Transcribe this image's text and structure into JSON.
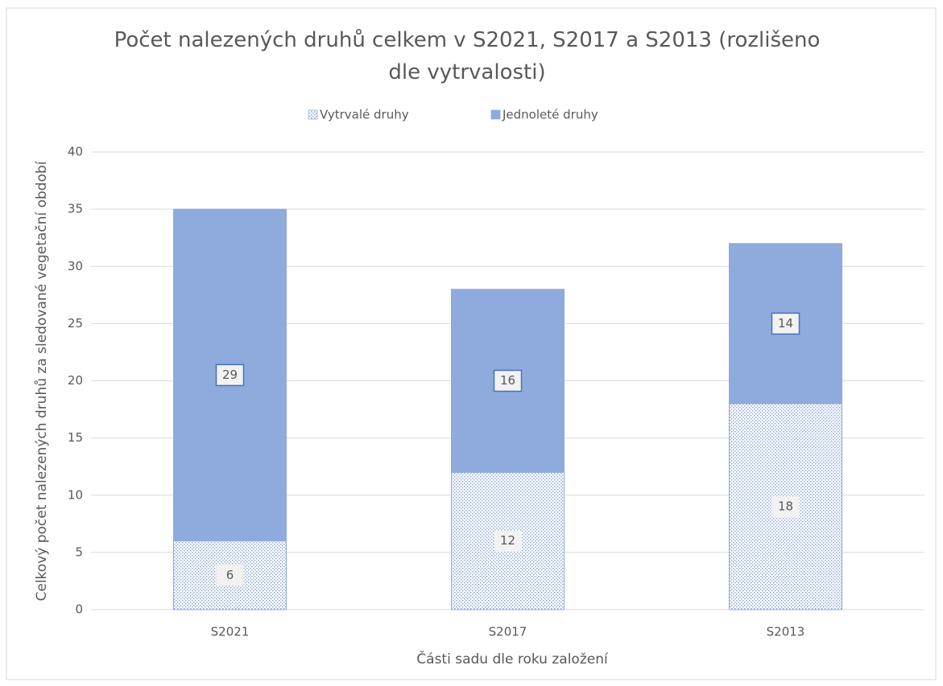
{
  "chart_data": {
    "type": "stacked_bar",
    "title": "Počet nalezených druhů celkem v S2021, S2017 a S2013  (rozlišeno dle vytrvalosti)",
    "x_label": "Části sadu dle roku založení",
    "y_label": "Celkový počet nalezených druhů za sledované vegetační období",
    "categories": [
      "S2021",
      "S2017",
      "S2013"
    ],
    "series": [
      {
        "name": "Vytrvalé druhy",
        "color": "#8faadc",
        "fill_pattern": "dotted",
        "values": [
          6,
          12,
          18
        ]
      },
      {
        "name": "Jednoleté druhy",
        "color": "#8faadc",
        "fill_pattern": "solid",
        "values": [
          29,
          16,
          14
        ]
      }
    ],
    "ylim": [
      0,
      40
    ],
    "yticks": [
      0,
      5,
      10,
      15,
      20,
      25,
      30,
      35,
      40
    ],
    "grid": true,
    "legend": "top"
  }
}
